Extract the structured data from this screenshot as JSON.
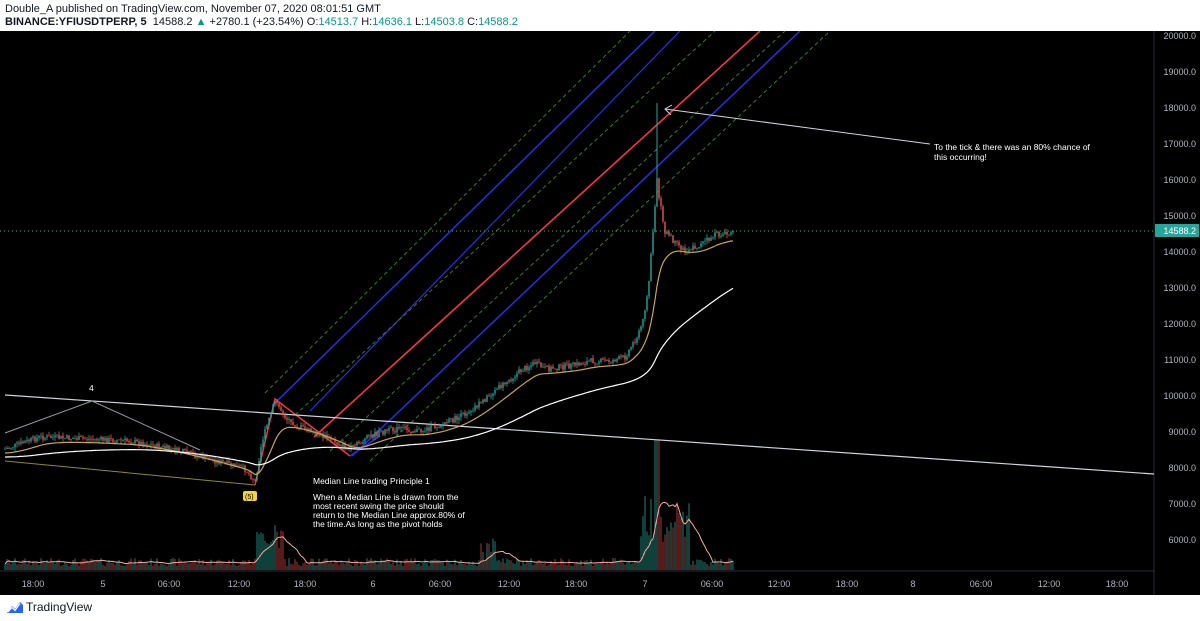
{
  "header": {
    "publisher_line": "Double_A published on TradingView.com, November 07, 2020 08:01:51 GMT",
    "symbol": "BINANCE:YFIUSDTPERP, 5",
    "last": "14588.2",
    "arrow": "▲",
    "change": "+2780.1 (+23.54%)",
    "o_label": "O:",
    "o_val": "14513.7",
    "h_label": "H:",
    "h_val": "14636.1",
    "l_label": "L:",
    "l_val": "14503.8",
    "c_label": "C:",
    "c_val": "14588.2"
  },
  "price_axis": [
    "20000.0",
    "19000.0",
    "18000.0",
    "17000.0",
    "16000.0",
    "15000.0",
    "14000.0",
    "13000.0",
    "12000.0",
    "11000.0",
    "10000.0",
    "9000.0",
    "8000.0",
    "7000.0",
    "6000.0"
  ],
  "time_axis": [
    "18:00",
    "5",
    "06:00",
    "12:00",
    "18:00",
    "6",
    "06:00",
    "12:00",
    "18:00",
    "7",
    "06:00",
    "12:00",
    "18:00",
    "8",
    "06:00",
    "12:00",
    "18:00"
  ],
  "annotations": {
    "pivot_label": "4",
    "pivot_marker": "(5)",
    "tick_note_line1": "To the tick & there was an 80% chance of",
    "tick_note_line2": "this occurring!",
    "principle_title": "Median Line trading Principle 1",
    "principle_line1": "When a Median Line is drawn from the",
    "principle_line2": "most recent swing the price should",
    "principle_line3": "return to the Median Line approx.80% of",
    "principle_line4": "the time.As long as the pivot holds"
  },
  "colors": {
    "median": "#f23645",
    "channel": "#2a2ee0",
    "dashed": "#2e7d32",
    "ema_fast": "#c8a64b",
    "ema_slow": "#ffffff",
    "up": "#26a69a",
    "down": "#ef5350",
    "last_price_line": "#4caf50"
  },
  "footer": {
    "logo_icon": "tradingview-logo-icon",
    "brand": "TradingView"
  }
}
